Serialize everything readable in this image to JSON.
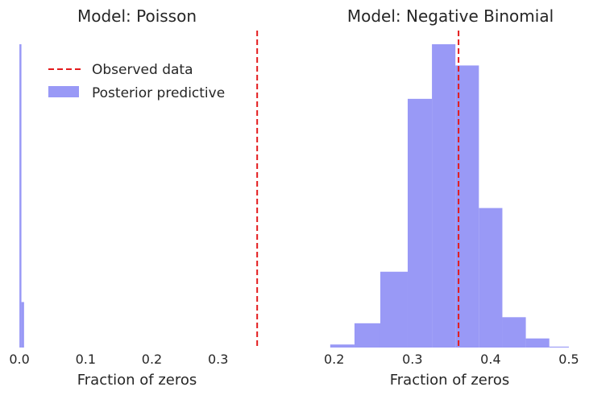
{
  "chart_data": [
    {
      "type": "bar",
      "title": "Model: Poisson",
      "xlabel": "Fraction of zeros",
      "ylabel": "",
      "xlim": [
        -0.005,
        0.36
      ],
      "ylim": [
        0,
        100
      ],
      "xticks": [
        {
          "value": 0.0,
          "label": "0.0"
        },
        {
          "value": 0.1,
          "label": "0.1"
        },
        {
          "value": 0.2,
          "label": "0.2"
        },
        {
          "value": 0.3,
          "label": "0.3"
        }
      ],
      "bins": [
        {
          "x0": 0.0,
          "x1": 0.003,
          "value": 100
        },
        {
          "x0": 0.003,
          "x1": 0.007,
          "value": 15
        }
      ],
      "observed": 0.359,
      "legend": {
        "placement": "top-right",
        "entries": [
          {
            "label": "Observed data",
            "style": "dashed-line"
          },
          {
            "label": "Posterior predictive",
            "style": "patch"
          }
        ]
      }
    },
    {
      "type": "bar",
      "title": "Model: Negative Binomial",
      "xlabel": "Fraction of zeros",
      "ylabel": "",
      "xlim": [
        0.19,
        0.5
      ],
      "ylim": [
        0,
        100
      ],
      "xticks": [
        {
          "value": 0.2,
          "label": "0.2"
        },
        {
          "value": 0.3,
          "label": "0.3"
        },
        {
          "value": 0.4,
          "label": "0.4"
        },
        {
          "value": 0.5,
          "label": "0.5"
        }
      ],
      "bins": [
        {
          "x0": 0.195,
          "x1": 0.226,
          "value": 1
        },
        {
          "x0": 0.226,
          "x1": 0.259,
          "value": 8
        },
        {
          "x0": 0.259,
          "x1": 0.294,
          "value": 25
        },
        {
          "x0": 0.294,
          "x1": 0.325,
          "value": 82
        },
        {
          "x0": 0.325,
          "x1": 0.355,
          "value": 100
        },
        {
          "x0": 0.355,
          "x1": 0.385,
          "value": 93
        },
        {
          "x0": 0.385,
          "x1": 0.415,
          "value": 46
        },
        {
          "x0": 0.415,
          "x1": 0.445,
          "value": 10
        },
        {
          "x0": 0.445,
          "x1": 0.475,
          "value": 3
        },
        {
          "x0": 0.475,
          "x1": 0.5,
          "value": 0.3
        }
      ],
      "observed": 0.359
    }
  ],
  "colors": {
    "bar": "#9999f6",
    "observed_line": "#e31a1c",
    "text": "#262626"
  }
}
